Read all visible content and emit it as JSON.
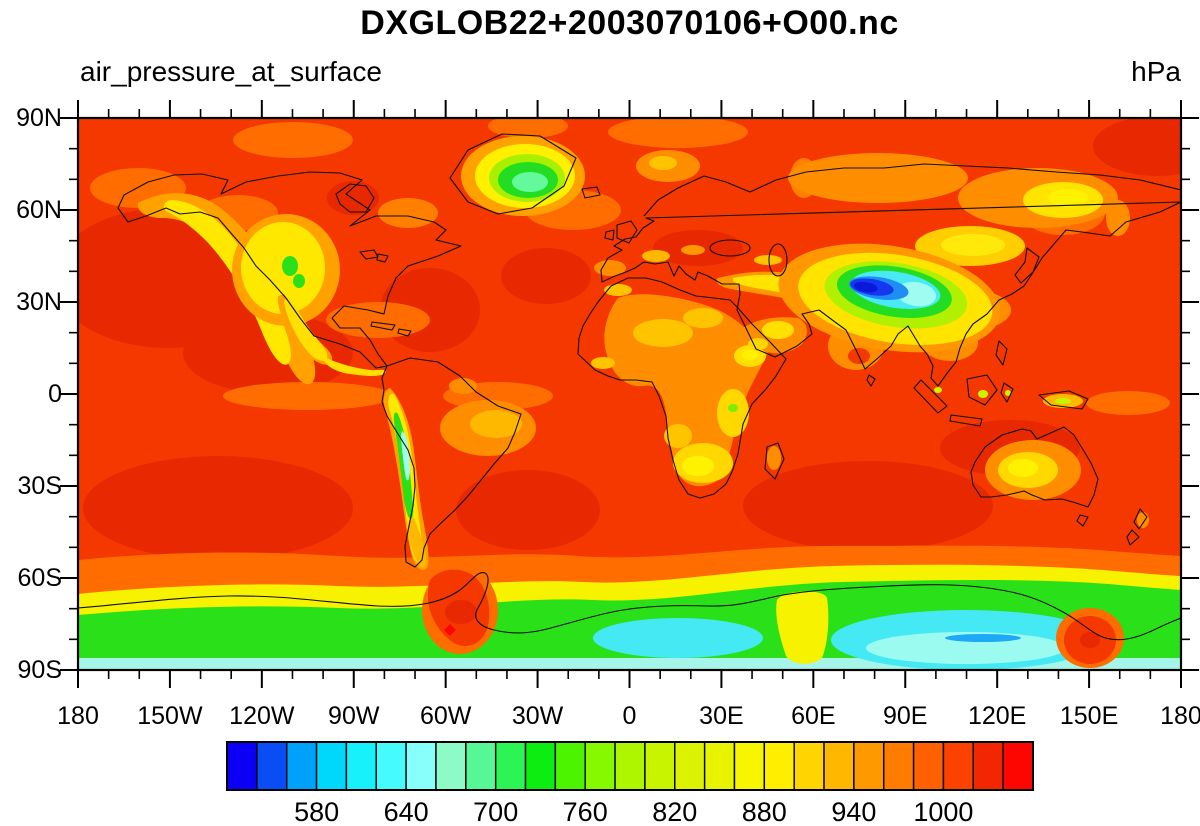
{
  "title": "DXGLOB22+2003070106+O00.nc",
  "subtitle_left": "air_pressure_at_surface",
  "units_label": "hPa",
  "axes": {
    "lat_labels": [
      "90N",
      "60N",
      "30N",
      "0",
      "30S",
      "60S",
      "90S"
    ],
    "lon_labels": [
      "180",
      "150W",
      "120W",
      "90W",
      "60W",
      "30W",
      "0",
      "30E",
      "60E",
      "90E",
      "120E",
      "150E",
      "180"
    ],
    "major_step_deg": 30,
    "minor_step_deg": 10
  },
  "colorbar": {
    "labels": [
      "580",
      "640",
      "700",
      "760",
      "820",
      "880",
      "940",
      "1000"
    ],
    "levels_start": 520,
    "levels_step": 20,
    "colors": [
      "#0b00f5",
      "#0b4df5",
      "#00a1fb",
      "#00d8fb",
      "#16f1fb",
      "#45fbfb",
      "#87fffb",
      "#8dfbc8",
      "#57f795",
      "#2cf454",
      "#0cee12",
      "#4df400",
      "#86f800",
      "#aef600",
      "#c8f400",
      "#dbf300",
      "#e8f300",
      "#f8f500",
      "#ffee00",
      "#ffd400",
      "#ffb700",
      "#ff9900",
      "#ff7c00",
      "#ff6000",
      "#fc4100",
      "#f22600",
      "#fd0500"
    ]
  },
  "chart_data": {
    "type": "heatmap",
    "subtype": "filled-contour-world-map",
    "title": "DXGLOB22+2003070106+O00.nc",
    "variable": "air_pressure_at_surface",
    "units": "hPa",
    "projection": "equirectangular",
    "lon_range": [
      -180,
      180
    ],
    "lat_range": [
      -90,
      90
    ],
    "lon_ticks": [
      "180",
      "150W",
      "120W",
      "90W",
      "60W",
      "30W",
      "0",
      "30E",
      "60E",
      "90E",
      "120E",
      "150E",
      "180"
    ],
    "lat_ticks": [
      "90N",
      "60N",
      "30N",
      "0",
      "30S",
      "60S",
      "90S"
    ],
    "contour_levels": [
      520,
      540,
      560,
      580,
      600,
      620,
      640,
      660,
      680,
      700,
      720,
      740,
      760,
      780,
      800,
      820,
      840,
      860,
      880,
      900,
      920,
      940,
      960,
      980,
      1000,
      1020,
      1040,
      1060
    ],
    "colorbar_labels": [
      580,
      640,
      700,
      760,
      820,
      880,
      940,
      1000
    ],
    "legend_position": "bottom",
    "grid": false,
    "features": [
      {
        "region": "Oceans at sea level (most of map)",
        "approx_hPa": "1000-1020"
      },
      {
        "region": "Subtropical high centers (S Pacific, S Atlantic, S Indian, NW Pacific, N Atlantic)",
        "approx_hPa": "1020-1040"
      },
      {
        "region": "Tibetan Plateau / Himalaya (blue core)",
        "approx_hPa": "540-600"
      },
      {
        "region": "Ring around Tibetan Plateau (cyan-green-yellow)",
        "approx_hPa": "600-860"
      },
      {
        "region": "Greenland ice sheet interior (green/mint)",
        "approx_hPa": "680-740"
      },
      {
        "region": "Rocky Mountains / western North America (yellow, small green spots)",
        "approx_hPa": "780-860"
      },
      {
        "region": "Andes (yellow-green band with pale cyan core)",
        "approx_hPa": "620-760"
      },
      {
        "region": "Mexico and Central America highlands (yellow)",
        "approx_hPa": "800-880"
      },
      {
        "region": "African highlands (Ethiopia, East/Southern Africa, yellow patches)",
        "approx_hPa": "820-920"
      },
      {
        "region": "Middle East / Iran / Turkey band (yellow)",
        "approx_hPa": "840-920"
      },
      {
        "region": "East Antarctic ice sheet (cyan / pale cyan)",
        "approx_hPa": "580-660"
      },
      {
        "region": "Antarctic coastal slope (green/yellow band)",
        "approx_hPa": "680-800"
      },
      {
        "region": "Antarctic Peninsula / Ross sector (red intrusions)",
        "approx_hPa": "980-1020"
      },
      {
        "region": "Australia interior (yellow center)",
        "approx_hPa": "900-960"
      },
      {
        "region": "Siberia / Mongolia patches (yellow)",
        "approx_hPa": "860-940"
      }
    ]
  }
}
